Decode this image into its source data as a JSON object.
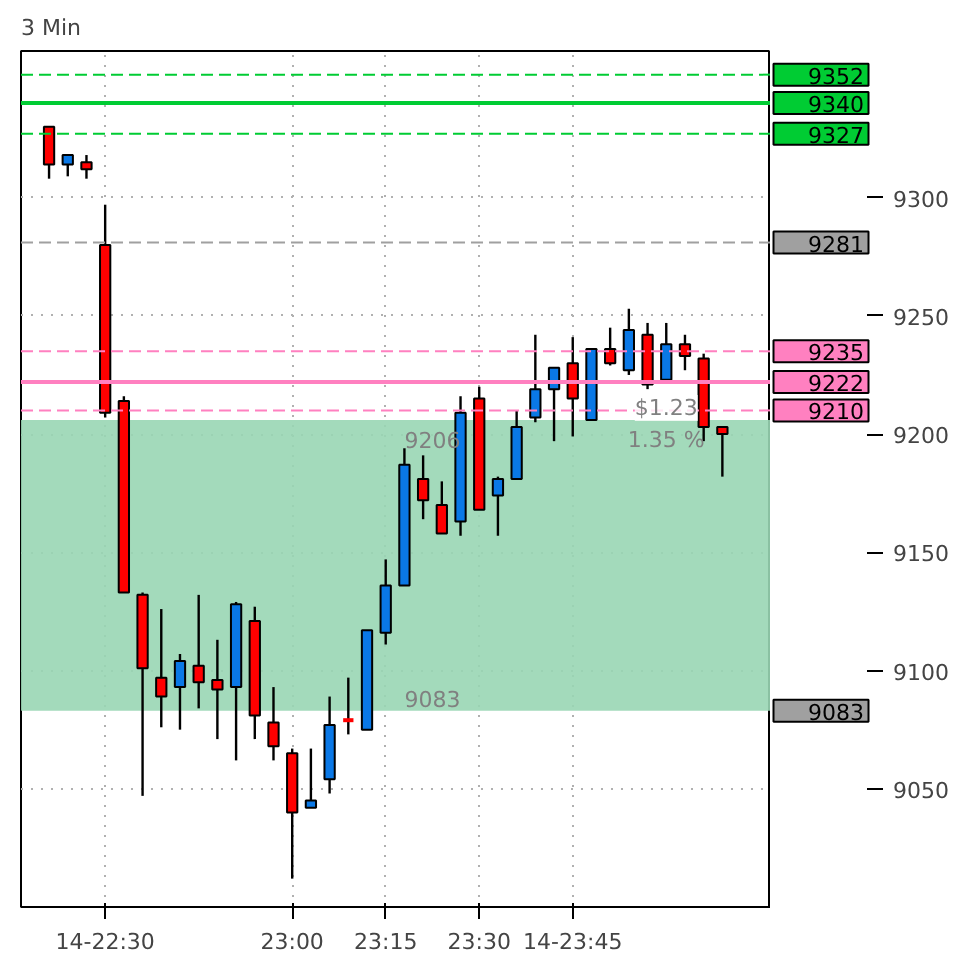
{
  "chart_data": {
    "type": "candlestick",
    "title": "3 Min",
    "x": [
      22.35,
      22.4,
      22.45,
      22.5,
      22.55,
      22.6,
      22.65,
      22.7,
      22.75,
      22.8,
      22.85,
      22.9,
      22.95,
      23.0,
      23.05,
      23.1,
      23.15,
      23.2,
      23.25,
      23.3,
      23.35,
      23.4,
      23.45,
      23.5,
      23.55,
      23.6,
      23.65,
      23.7,
      23.75,
      23.8,
      23.85,
      23.9,
      23.95,
      24.0,
      24.05,
      24.1,
      24.15
    ],
    "ohlc": [
      [
        9330,
        9330,
        9308,
        9314
      ],
      [
        9314,
        9318,
        9309,
        9318
      ],
      [
        9315,
        9318,
        9308,
        9312
      ],
      [
        9280,
        9297,
        9207,
        9209
      ],
      [
        9214,
        9216,
        9133,
        9133
      ],
      [
        9132,
        9133,
        9047,
        9101
      ],
      [
        9097,
        9126,
        9076,
        9089
      ],
      [
        9093,
        9107,
        9075,
        9104
      ],
      [
        9102,
        9132,
        9084,
        9095
      ],
      [
        9096,
        9113,
        9071,
        9092
      ],
      [
        9093,
        9129,
        9062,
        9128
      ],
      [
        9121,
        9127,
        9071,
        9081
      ],
      [
        9078,
        9093,
        9062,
        9068
      ],
      [
        9065,
        9067,
        9012,
        9040
      ],
      [
        9042,
        9067,
        9042,
        9045
      ],
      [
        9054,
        9089,
        9048,
        9077
      ],
      [
        9079,
        9097,
        9073,
        9079
      ],
      [
        9075,
        9117,
        9075,
        9117
      ],
      [
        9116,
        9147,
        9111,
        9136
      ],
      [
        9136,
        9194,
        9136,
        9187
      ],
      [
        9181,
        9191,
        9164,
        9172
      ],
      [
        9170,
        9180,
        9158,
        9158
      ],
      [
        9163,
        9216,
        9157,
        9209
      ],
      [
        9215,
        9220,
        9168,
        9168
      ],
      [
        9174,
        9182,
        9157,
        9181
      ],
      [
        9181,
        9210,
        9181,
        9203
      ],
      [
        9207,
        9242,
        9205,
        9219
      ],
      [
        9219,
        9228,
        9197,
        9228
      ],
      [
        9230,
        9241,
        9199,
        9215
      ],
      [
        9206,
        9236,
        9206,
        9236
      ],
      [
        9236,
        9245,
        9229,
        9230
      ],
      [
        9227,
        9253,
        9225,
        9244
      ],
      [
        9242,
        9247,
        9219,
        9221
      ],
      [
        9223,
        9247,
        9223,
        9238
      ],
      [
        9238,
        9242,
        9227,
        9233
      ],
      [
        9232,
        9234,
        9197,
        9203
      ],
      [
        9203,
        9203,
        9182,
        9200
      ]
    ],
    "colors": [
      "#ff0000",
      "#0a78e6",
      "#ff0000",
      "#ff0000",
      "#ff0000",
      "#ff0000",
      "#ff0000",
      "#0a78e6",
      "#ff0000",
      "#ff0000",
      "#0a78e6",
      "#ff0000",
      "#ff0000",
      "#ff0000",
      "#0a78e6",
      "#0a78e6",
      "#ff0000",
      "#0a78e6",
      "#0a78e6",
      "#0a78e6",
      "#ff0000",
      "#ff0000",
      "#0a78e6",
      "#ff0000",
      "#0a78e6",
      "#0a78e6",
      "#0a78e6",
      "#0a78e6",
      "#ff0000",
      "#0a78e6",
      "#ff0000",
      "#0a78e6",
      "#ff0000",
      "#0a78e6",
      "#ff0000",
      "#ff0000",
      "#ff0000"
    ],
    "xlim": [
      22.275,
      24.28
    ],
    "xticks": [
      {
        "value": 22.5,
        "label": "14-22:30"
      },
      {
        "value": 23.0,
        "label": "23:00"
      },
      {
        "value": 23.25,
        "label": "23:15"
      },
      {
        "value": 23.5,
        "label": "23:30"
      },
      {
        "value": 23.75,
        "label": "14-23:45"
      }
    ],
    "ylim": [
      9000,
      9362
    ],
    "yticks": [
      9050,
      9100,
      9150,
      9200,
      9250,
      9300
    ],
    "grid": true,
    "ref_lines": [
      {
        "axis": "y",
        "value": 9352,
        "label": "9352",
        "color": "#00cc33",
        "line_style": "dashed"
      },
      {
        "axis": "y",
        "value": 9340,
        "label": "9340",
        "color": "#00cc33",
        "line_style": "solid"
      },
      {
        "axis": "y",
        "value": 9327,
        "label": "9327",
        "color": "#00cc33",
        "line_style": "dashed"
      },
      {
        "axis": "y",
        "value": 9281,
        "label": "9281",
        "color": "#a0a0a0",
        "line_style": "dashed"
      },
      {
        "axis": "y",
        "value": 9235,
        "label": "9235",
        "color": "#ff80c0",
        "line_style": "dashed"
      },
      {
        "axis": "y",
        "value": 9222,
        "label": "9222",
        "color": "#ff80c0",
        "line_style": "solid"
      },
      {
        "axis": "y",
        "value": 9210,
        "label": "9210",
        "color": "#ff80c0",
        "line_style": "dashed"
      }
    ],
    "bands": [
      {
        "axis": "y",
        "from": 9083,
        "to": 9206,
        "label": "9083",
        "color": "#99d6b4"
      }
    ],
    "annotations": [
      {
        "text": "9206",
        "x": 23.3,
        "y": 9206
      },
      {
        "text": "9083",
        "x": 23.3,
        "y": 9083
      },
      "$1.23",
      "1.35 %"
    ]
  }
}
